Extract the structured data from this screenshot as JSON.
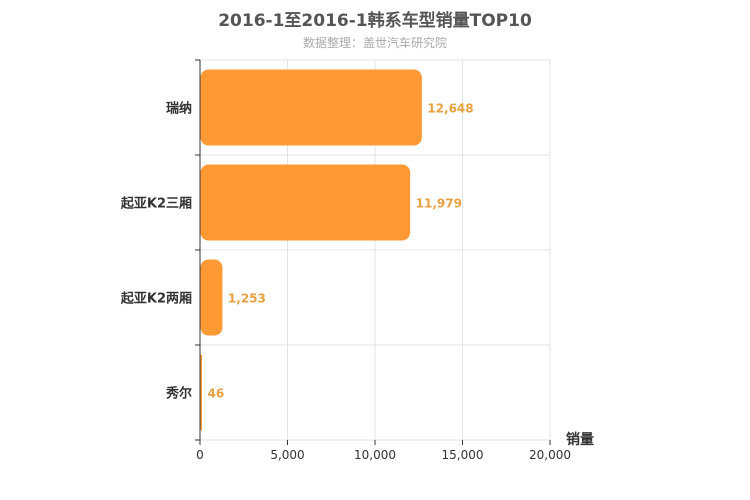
{
  "chart_data": {
    "type": "bar",
    "orientation": "horizontal",
    "title": "2016-1至2016-1韩系车型销量TOP10",
    "subtitle": "数据整理：盖世汽车研究院",
    "xlabel": "销量",
    "ylabel": "",
    "categories": [
      "瑞纳",
      "起亚K2三厢",
      "起亚K2两厢",
      "秀尔"
    ],
    "values": [
      12648,
      11979,
      1253,
      46
    ],
    "value_labels": [
      "12,648",
      "11,979",
      "1,253",
      "46"
    ],
    "xlim": [
      0,
      20000
    ],
    "x_ticks": [
      0,
      5000,
      10000,
      15000,
      20000
    ],
    "x_tick_labels": [
      "0",
      "5,000",
      "10,000",
      "15,000",
      "20,000"
    ],
    "grid": true,
    "bar_color": "#FF9933",
    "label_color": "#E8A040"
  }
}
